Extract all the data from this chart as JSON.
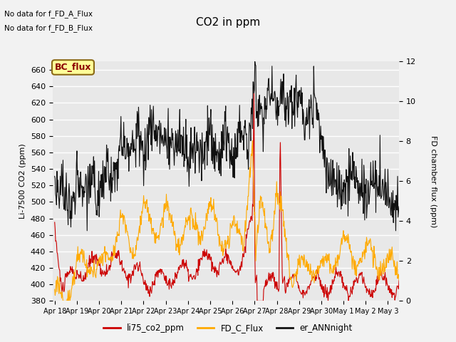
{
  "title": "CO2 in ppm",
  "ylabel_left": "Li-7500 CO2 (ppm)",
  "ylabel_right": "FD chamber flux (ppm)",
  "ylim_left": [
    380,
    670
  ],
  "ylim_right": [
    0,
    12
  ],
  "yticks_left": [
    380,
    400,
    420,
    440,
    460,
    480,
    500,
    520,
    540,
    560,
    580,
    600,
    620,
    640,
    660
  ],
  "yticks_right": [
    0,
    2,
    4,
    6,
    8,
    10,
    12
  ],
  "text_no_data_1": "No data for f_FD_A_Flux",
  "text_no_data_2": "No data for f_FD_B_Flux",
  "bc_flux_label": "BC_flux",
  "legend_entries": [
    "li75_co2_ppm",
    "FD_C_Flux",
    "er_ANNnight"
  ],
  "legend_colors": [
    "#cc0000",
    "#ffaa00",
    "#111111"
  ],
  "line_colors": {
    "li75": "#cc0000",
    "fd_c": "#ffaa00",
    "er_ann": "#111111"
  },
  "bg_color": "#e8e8e8",
  "grid_color": "#ffffff",
  "xticklabels": [
    "Apr 18",
    "Apr 19",
    "Apr 20",
    "Apr 21",
    "Apr 22",
    "Apr 23",
    "Apr 24",
    "Apr 25",
    "Apr 26",
    "Apr 27",
    "Apr 28",
    "Apr 29",
    "Apr 30",
    "May 1",
    "May 2",
    "May 3"
  ]
}
